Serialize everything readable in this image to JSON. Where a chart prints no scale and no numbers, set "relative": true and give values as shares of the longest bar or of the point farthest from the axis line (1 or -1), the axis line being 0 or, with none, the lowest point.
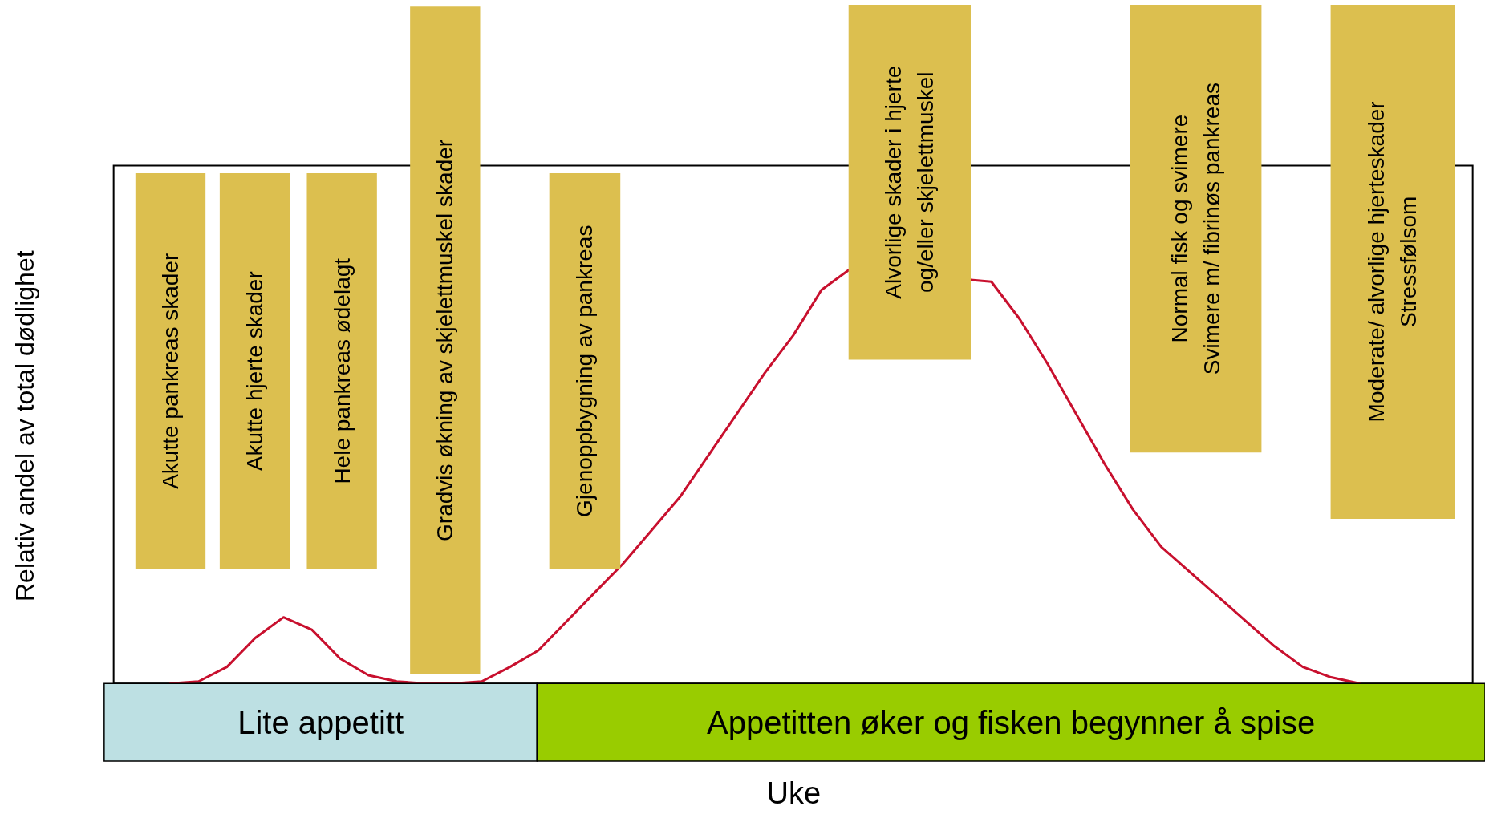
{
  "chart_data": {
    "type": "line",
    "relative": true,
    "xlabel": "Uke",
    "ylabel": "Relativ andel av total dødlighet",
    "categories": [
      null,
      null,
      null,
      null,
      null,
      null,
      null,
      null,
      null,
      null,
      null,
      null,
      null,
      null,
      null,
      null,
      null,
      null,
      null,
      null,
      null,
      null,
      null,
      null,
      null,
      null,
      null,
      null,
      null,
      null,
      null,
      null,
      null,
      null,
      null,
      null,
      null,
      null,
      null,
      null,
      null,
      null,
      null,
      null,
      null,
      null,
      null,
      null,
      null
    ],
    "series": [
      {
        "color": "#c8102e",
        "values": [
          null,
          null,
          0,
          0.005,
          0.04,
          0.11,
          0.16,
          0.13,
          0.06,
          0.02,
          0.005,
          0,
          0,
          0.005,
          0.04,
          0.08,
          0.15,
          0.22,
          0.29,
          0.37,
          0.45,
          0.55,
          0.65,
          0.75,
          0.84,
          0.95,
          1,
          null,
          null,
          null,
          null,
          0.97,
          0.88,
          0.77,
          0.65,
          0.53,
          0.42,
          0.33,
          0.27,
          0.21,
          0.15,
          0.09,
          0.04,
          0.015,
          0,
          null,
          null,
          null,
          null
        ]
      }
    ],
    "annotations": [
      "Akutte pankreas skader",
      "Akutte hjerte skader",
      "Hele pankreas ødelagt",
      "Gradvis økning av skjelettmuskel skader",
      "Gjenoppbygning av pankreas",
      "Alvorlige skader i hjerte\nog/eller skjelettmuskel",
      "Normal fisk og svimere\nSvimere m/ fibrinøs pankreas",
      "Moderate/ alvorlige hjerteskader\nStressfølsom",
      "Lite appetitt",
      "Appetitten øker og fisken begynner å spise"
    ]
  }
}
